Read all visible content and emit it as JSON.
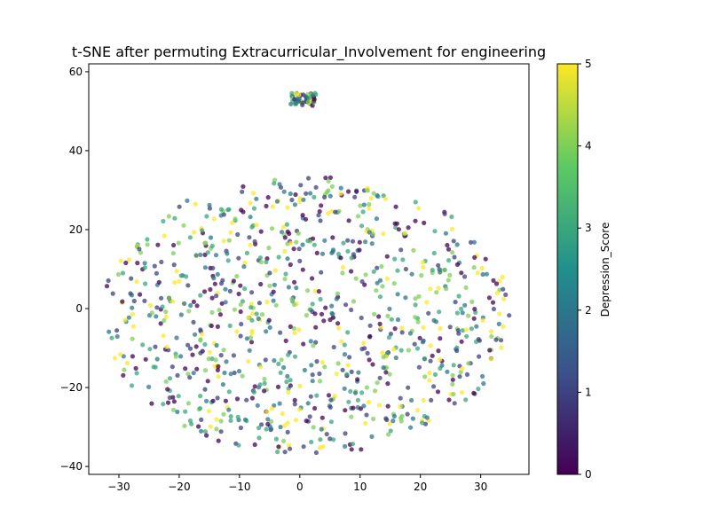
{
  "chart_data": {
    "type": "scatter",
    "title": "t-SNE after permuting Extracurricular_Involvement for engineering",
    "xlabel": "",
    "ylabel": "",
    "xlim": [
      -35,
      38
    ],
    "ylim": [
      -42,
      62
    ],
    "xticks": [
      -30,
      -20,
      -10,
      0,
      10,
      20,
      30
    ],
    "yticks": [
      -40,
      -20,
      0,
      20,
      40,
      60
    ],
    "grid": false,
    "legend": "none",
    "colorbar": {
      "label": "Depression_Score",
      "range": [
        0,
        5
      ],
      "ticks": [
        0,
        1,
        2,
        3,
        4,
        5
      ],
      "colormap": "viridis",
      "colors": [
        "#440154",
        "#3b528b",
        "#21908d",
        "#5dc963",
        "#fde725"
      ]
    },
    "marker_alpha": 0.75,
    "clusters": [
      {
        "name": "top-cluster",
        "center": [
          0.5,
          53
        ],
        "spread": [
          2.2,
          1.6
        ],
        "count": 55
      },
      {
        "name": "main-cloud",
        "center": [
          1,
          -2
        ],
        "extent_x": [
          -32,
          35
        ],
        "extent_y": [
          -37,
          34
        ],
        "count": 950
      }
    ]
  }
}
